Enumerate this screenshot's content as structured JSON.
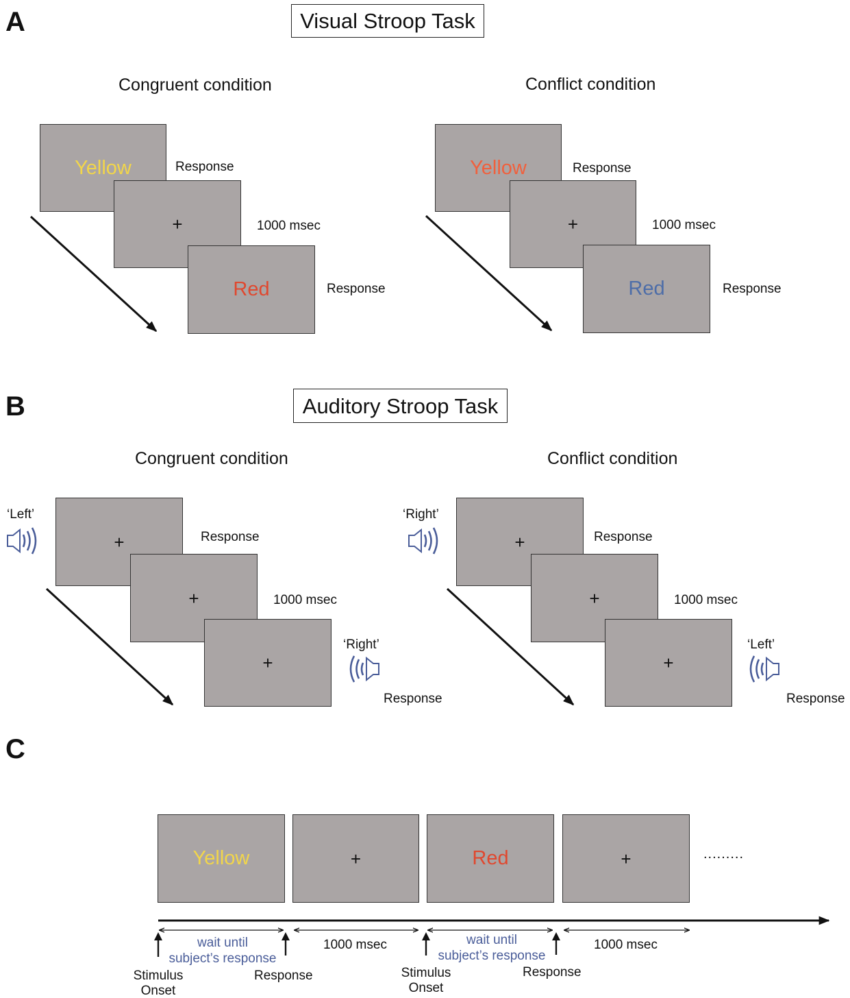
{
  "panels": {
    "a": {
      "letter": "A",
      "title": "Visual Stroop Task",
      "congruent": {
        "heading": "Congruent condition",
        "card1_word": "Yellow",
        "card1_color": "#f2d64a",
        "card2_symbol": "+",
        "card3_word": "Red",
        "card3_color": "#e0482f",
        "response1": "Response",
        "interval": "1000 msec",
        "response2": "Response"
      },
      "conflict": {
        "heading": "Conflict condition",
        "card1_word": "Yellow",
        "card1_color": "#f0603d",
        "card2_symbol": "+",
        "card3_word": "Red",
        "card3_color": "#4d6da8",
        "response1": "Response",
        "interval": "1000 msec",
        "response2": "Response"
      }
    },
    "b": {
      "letter": "B",
      "title": "Auditory Stroop Task",
      "congruent": {
        "heading": "Congruent condition",
        "sound1": "‘Left’",
        "sound2": "‘Right’",
        "symbol": "+",
        "response1": "Response",
        "interval": "1000 msec",
        "response2": "Response"
      },
      "conflict": {
        "heading": "Conflict condition",
        "sound1": "‘Right’",
        "sound2": "‘Left’",
        "symbol": "+",
        "response1": "Response",
        "interval": "1000 msec",
        "response2": "Response"
      }
    },
    "c": {
      "letter": "C",
      "cards": [
        {
          "text": "Yellow",
          "color": "#f2d64a"
        },
        {
          "text": "+",
          "color": "#111111"
        },
        {
          "text": "Red",
          "color": "#e0482f"
        },
        {
          "text": "+",
          "color": "#111111"
        }
      ],
      "ellipsis": ".........",
      "wait_line1": "wait until",
      "wait_line2": "subject’s response",
      "interval": "1000 msec",
      "stimulus": "Stimulus",
      "onset": "Onset",
      "response": "Response"
    }
  },
  "colors": {
    "card_fill": "#aaa5a5",
    "speaker": "#4a5d99",
    "annotation_blue": "#4a5d99"
  },
  "icons": [
    "speaker-icon",
    "arrow-icon"
  ]
}
